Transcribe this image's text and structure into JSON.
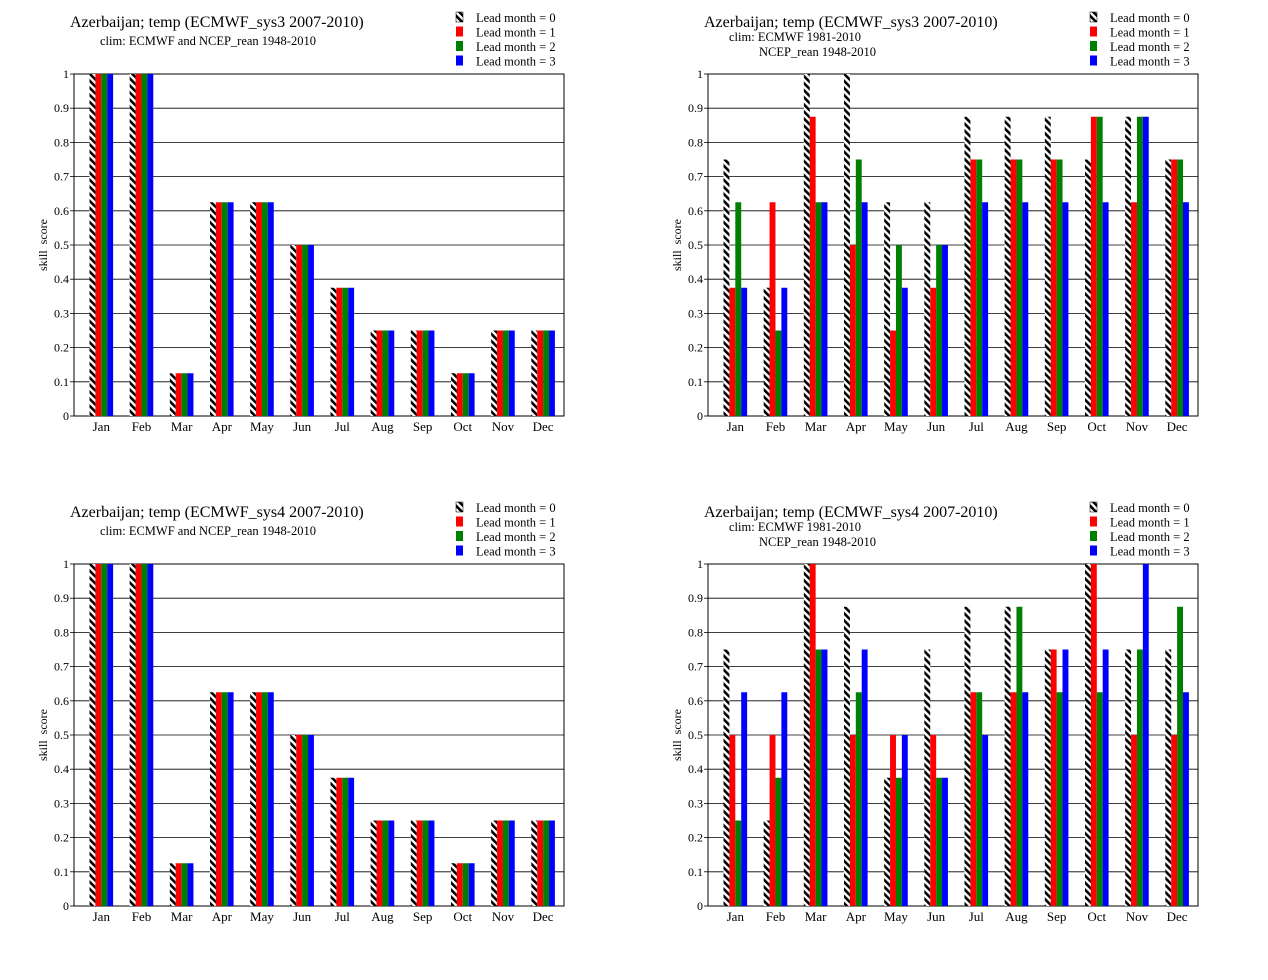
{
  "colors": {
    "lead0_pattern": [
      "#000000",
      "#ffffff"
    ],
    "lead1": "#ff0000",
    "lead2": "#008000",
    "lead3": "#0000ff",
    "gridline": "#000000",
    "axis": "#000000"
  },
  "chart_data": [
    {
      "type": "bar",
      "title": "Azerbaijan; temp (ECMWF_sys3 2007-2010)",
      "subtitle_lines": [
        "clim: ECMWF and NCEP_rean 1948-2010"
      ],
      "xlabel": "",
      "ylabel": "skill  score",
      "ylim": [
        0,
        1
      ],
      "yticks": [
        "0",
        "0.1",
        "0.2",
        "0.3",
        "0.4",
        "0.5",
        "0.6",
        "0.7",
        "0.8",
        "0.9",
        "1"
      ],
      "grid": "horizontal",
      "legend_position": "top-right",
      "categories": [
        "Jan",
        "Feb",
        "Mar",
        "Apr",
        "May",
        "Jun",
        "Jul",
        "Aug",
        "Sep",
        "Oct",
        "Nov",
        "Dec"
      ],
      "series": [
        {
          "name": "Lead month = 0",
          "values": [
            1,
            1,
            0.125,
            0.625,
            0.625,
            0.5,
            0.375,
            0.25,
            0.25,
            0.125,
            0.25,
            0.25
          ]
        },
        {
          "name": "Lead month = 1",
          "values": [
            1,
            1,
            0.125,
            0.625,
            0.625,
            0.5,
            0.375,
            0.25,
            0.25,
            0.125,
            0.25,
            0.25
          ]
        },
        {
          "name": "Lead month = 2",
          "values": [
            1,
            1,
            0.125,
            0.625,
            0.625,
            0.5,
            0.375,
            0.25,
            0.25,
            0.125,
            0.25,
            0.25
          ]
        },
        {
          "name": "Lead month = 3",
          "values": [
            1,
            1,
            0.125,
            0.625,
            0.625,
            0.5,
            0.375,
            0.25,
            0.25,
            0.125,
            0.25,
            0.25
          ]
        }
      ]
    },
    {
      "type": "bar",
      "title": "Azerbaijan; temp (ECMWF_sys3 2007-2010)",
      "subtitle_lines": [
        "clim: ECMWF 1981-2010",
        "NCEP_rean 1948-2010"
      ],
      "xlabel": "",
      "ylabel": "skill  score",
      "ylim": [
        0,
        1
      ],
      "yticks": [
        "0",
        "0.1",
        "0.2",
        "0.3",
        "0.4",
        "0.5",
        "0.6",
        "0.7",
        "0.8",
        "0.9",
        "1"
      ],
      "grid": "horizontal",
      "legend_position": "top-right",
      "categories": [
        "Jan",
        "Feb",
        "Mar",
        "Apr",
        "May",
        "Jun",
        "Jul",
        "Aug",
        "Sep",
        "Oct",
        "Nov",
        "Dec"
      ],
      "series": [
        {
          "name": "Lead month = 0",
          "values": [
            0.75,
            0.375,
            1,
            1,
            0.625,
            0.625,
            0.875,
            0.875,
            0.875,
            0.75,
            0.875,
            0.75
          ]
        },
        {
          "name": "Lead month = 1",
          "values": [
            0.375,
            0.625,
            0.875,
            0.5,
            0.25,
            0.375,
            0.75,
            0.75,
            0.75,
            0.875,
            0.625,
            0.75
          ]
        },
        {
          "name": "Lead month = 2",
          "values": [
            0.625,
            0.25,
            0.625,
            0.75,
            0.5,
            0.5,
            0.75,
            0.75,
            0.75,
            0.875,
            0.875,
            0.75
          ]
        },
        {
          "name": "Lead month = 3",
          "values": [
            0.375,
            0.375,
            0.625,
            0.625,
            0.375,
            0.5,
            0.625,
            0.625,
            0.625,
            0.625,
            0.875,
            0.625
          ]
        }
      ]
    },
    {
      "type": "bar",
      "title": "Azerbaijan; temp (ECMWF_sys4 2007-2010)",
      "subtitle_lines": [
        "clim: ECMWF and NCEP_rean 1948-2010"
      ],
      "xlabel": "",
      "ylabel": "skill  score",
      "ylim": [
        0,
        1
      ],
      "yticks": [
        "0",
        "0.1",
        "0.2",
        "0.3",
        "0.4",
        "0.5",
        "0.6",
        "0.7",
        "0.8",
        "0.9",
        "1"
      ],
      "grid": "horizontal",
      "legend_position": "top-right",
      "categories": [
        "Jan",
        "Feb",
        "Mar",
        "Apr",
        "May",
        "Jun",
        "Jul",
        "Aug",
        "Sep",
        "Oct",
        "Nov",
        "Dec"
      ],
      "series": [
        {
          "name": "Lead month = 0",
          "values": [
            1,
            1,
            0.125,
            0.625,
            0.625,
            0.5,
            0.375,
            0.25,
            0.25,
            0.125,
            0.25,
            0.25
          ]
        },
        {
          "name": "Lead month = 1",
          "values": [
            1,
            1,
            0.125,
            0.625,
            0.625,
            0.5,
            0.375,
            0.25,
            0.25,
            0.125,
            0.25,
            0.25
          ]
        },
        {
          "name": "Lead month = 2",
          "values": [
            1,
            1,
            0.125,
            0.625,
            0.625,
            0.5,
            0.375,
            0.25,
            0.25,
            0.125,
            0.25,
            0.25
          ]
        },
        {
          "name": "Lead month = 3",
          "values": [
            1,
            1,
            0.125,
            0.625,
            0.625,
            0.5,
            0.375,
            0.25,
            0.25,
            0.125,
            0.25,
            0.25
          ]
        }
      ]
    },
    {
      "type": "bar",
      "title": "Azerbaijan; temp (ECMWF_sys4 2007-2010)",
      "subtitle_lines": [
        "clim: ECMWF 1981-2010",
        "NCEP_rean 1948-2010"
      ],
      "xlabel": "",
      "ylabel": "skill  score",
      "ylim": [
        0,
        1
      ],
      "yticks": [
        "0",
        "0.1",
        "0.2",
        "0.3",
        "0.4",
        "0.5",
        "0.6",
        "0.7",
        "0.8",
        "0.9",
        "1"
      ],
      "grid": "horizontal",
      "legend_position": "top-right",
      "categories": [
        "Jan",
        "Feb",
        "Mar",
        "Apr",
        "May",
        "Jun",
        "Jul",
        "Aug",
        "Sep",
        "Oct",
        "Nov",
        "Dec"
      ],
      "series": [
        {
          "name": "Lead month = 0",
          "values": [
            0.75,
            0.25,
            1,
            0.875,
            0.375,
            0.75,
            0.875,
            0.875,
            0.75,
            1,
            0.75,
            0.75
          ]
        },
        {
          "name": "Lead month = 1",
          "values": [
            0.5,
            0.5,
            1,
            0.5,
            0.5,
            0.5,
            0.625,
            0.625,
            0.75,
            1,
            0.5,
            0.5
          ]
        },
        {
          "name": "Lead month = 2",
          "values": [
            0.25,
            0.375,
            0.75,
            0.625,
            0.375,
            0.375,
            0.625,
            0.875,
            0.625,
            0.625,
            0.75,
            0.875
          ]
        },
        {
          "name": "Lead month = 3",
          "values": [
            0.625,
            0.625,
            0.75,
            0.75,
            0.5,
            0.375,
            0.5,
            0.625,
            0.75,
            0.75,
            1,
            0.625
          ]
        }
      ]
    }
  ]
}
